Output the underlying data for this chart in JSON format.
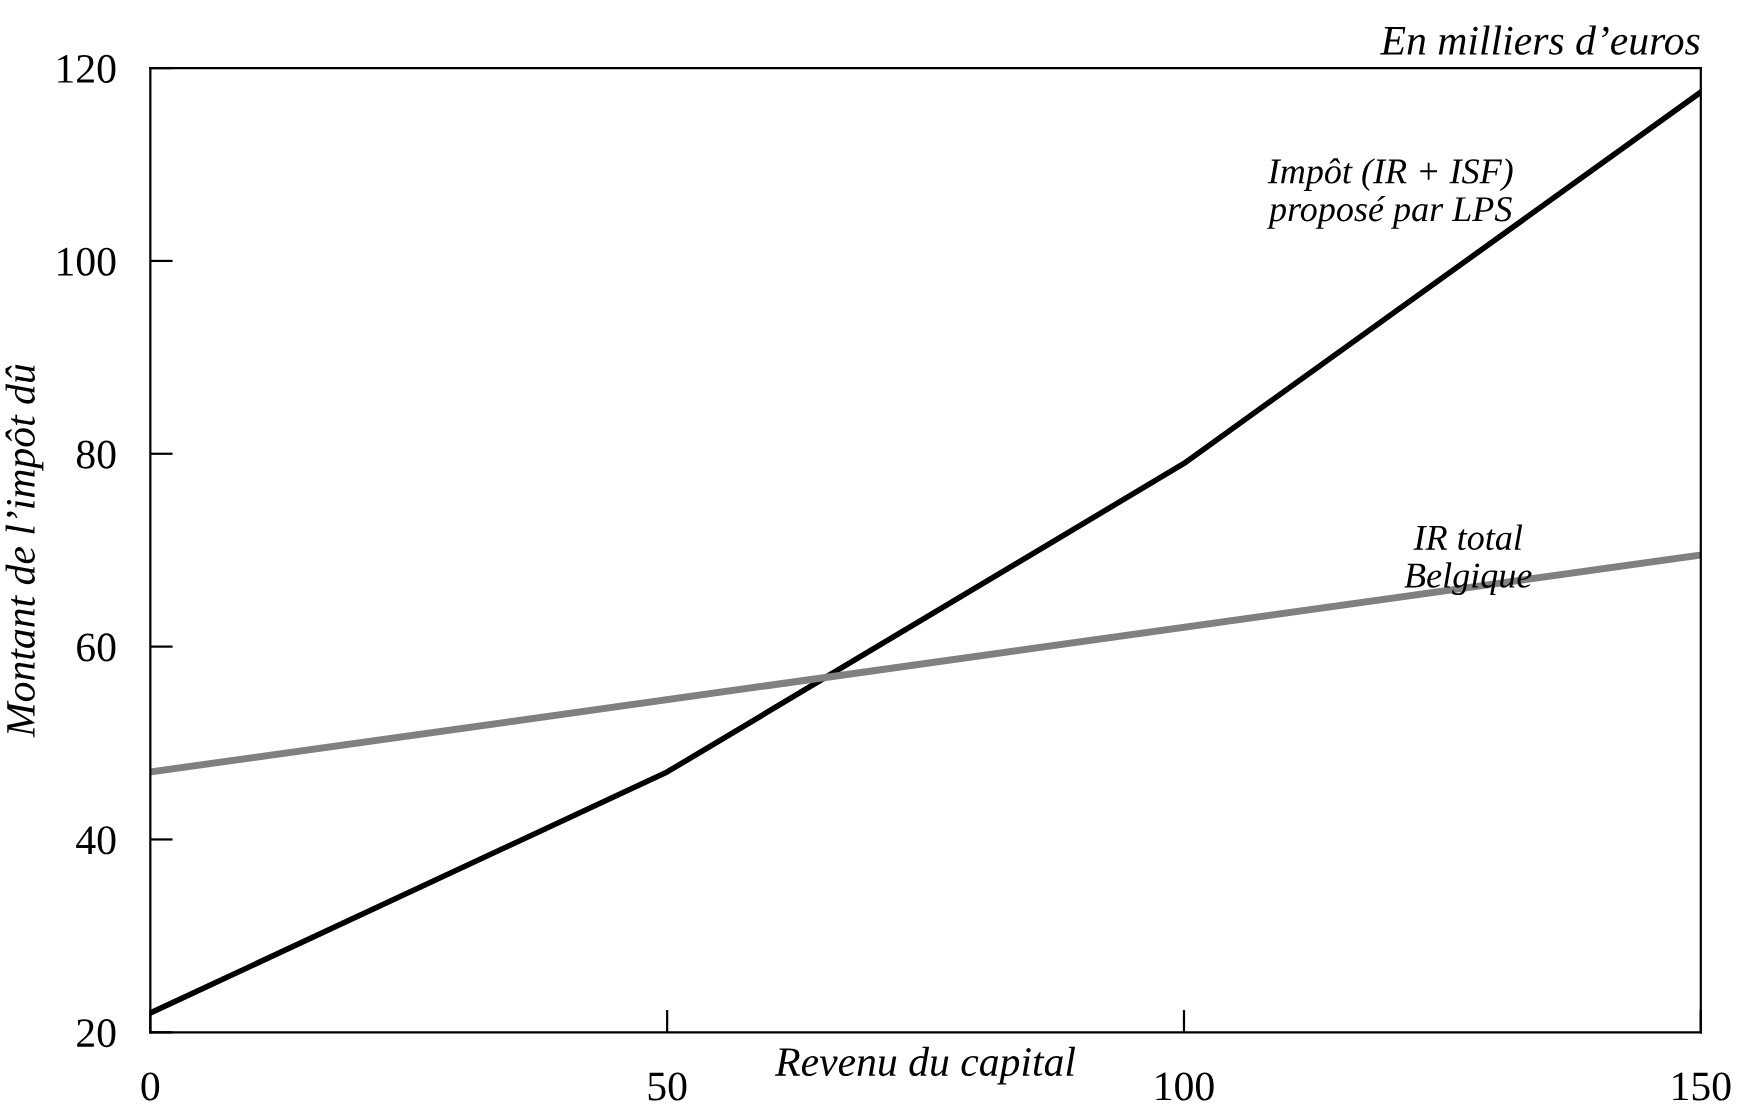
{
  "chart_data": {
    "type": "line",
    "xlabel": "Revenu du capital",
    "ylabel": "Montant de l’impôt dû",
    "annotations": [
      "En milliers d’euros"
    ],
    "series": [
      {
        "name": "Impôt (IR + ISF)\nproposé par LPS",
        "color": "#000000",
        "x": [
          0,
          50,
          100,
          150
        ],
        "values": [
          22,
          47,
          79,
          117.5
        ]
      },
      {
        "name": "IR total\nBelgique",
        "color": "#808080",
        "x": [
          0,
          150
        ],
        "values": [
          47,
          69.5
        ]
      }
    ],
    "xlim": [
      0,
      150
    ],
    "xticks": [
      0,
      50,
      100,
      150
    ],
    "ylim": [
      20,
      120
    ],
    "yticks": [
      20,
      40,
      60,
      80,
      100,
      120
    ],
    "grid": false,
    "legend": false,
    "marker": "none",
    "line_style": "solid"
  }
}
